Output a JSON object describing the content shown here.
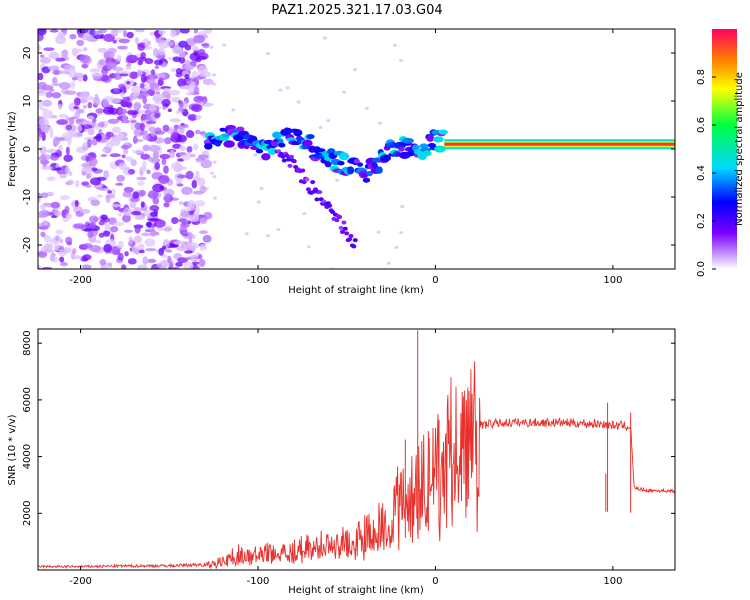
{
  "title": "PAZ1.2025.321.17.03.G04",
  "chart_data": [
    {
      "type": "heatmap",
      "name": "spectrogram",
      "xlabel": "Height of straight line (km)",
      "ylabel": "Frequency (Hz)",
      "xlim": [
        -224,
        135
      ],
      "ylim": [
        -25,
        25
      ],
      "xticks": [
        -200,
        -100,
        0,
        100
      ],
      "yticks": [
        -20,
        -10,
        0,
        10,
        20
      ],
      "colorbar": {
        "label": "Normalized spectral amplitude",
        "range": [
          0.0,
          1.0
        ],
        "ticks": [
          0.0,
          0.2,
          0.4,
          0.6,
          0.8
        ],
        "tick_labels": [
          "0.0",
          "0.2",
          "0.4",
          "0.6",
          "0.8"
        ]
      },
      "features": [
        {
          "desc": "scattered noise",
          "x_range": [
            -224,
            -128
          ],
          "y_range": [
            -25,
            25
          ],
          "amplitude": 0.1
        },
        {
          "desc": "signal band",
          "x": [
            -128,
            -110,
            -95,
            -80,
            -60,
            -40,
            -20,
            -10,
            0,
            20,
            50,
            90,
            100,
            135
          ],
          "y": [
            2,
            3,
            0,
            3,
            -2,
            -5,
            1,
            -1,
            2,
            1,
            1,
            1,
            1,
            1
          ]
        },
        {
          "desc": "diagonal branch",
          "x": [
            -90,
            -70,
            -55,
            -45
          ],
          "y": [
            1,
            -8,
            -15,
            -20
          ]
        },
        {
          "desc": "strong carrier",
          "x_range": [
            5,
            135
          ],
          "frequency": 1,
          "amplitude": 0.95
        }
      ]
    },
    {
      "type": "line",
      "name": "snr",
      "xlabel": "Height of straight line (km)",
      "ylabel": "SNR (10 * v/v)",
      "xlim": [
        -224,
        135
      ],
      "ylim": [
        0,
        8500
      ],
      "xticks": [
        -200,
        -100,
        0,
        100
      ],
      "yticks": [
        2000,
        4000,
        6000,
        8000
      ],
      "series": [
        {
          "name": "SNR",
          "color": "#e8312d",
          "x": [
            -224,
            -200,
            -175,
            -150,
            -128,
            -120,
            -112,
            -105,
            -95,
            -85,
            -75,
            -65,
            -55,
            -45,
            -35,
            -25,
            -20,
            -15,
            -12,
            -10,
            -8,
            -5,
            0,
            5,
            10,
            15,
            20,
            25,
            30,
            40,
            50,
            60,
            70,
            80,
            90,
            95,
            100,
            105,
            110,
            112,
            115,
            120,
            125,
            135
          ],
          "y": [
            120,
            120,
            140,
            150,
            200,
            350,
            600,
            500,
            650,
            700,
            800,
            900,
            1000,
            1100,
            1400,
            2000,
            2600,
            3000,
            3500,
            3200,
            3600,
            3400,
            3700,
            4300,
            4700,
            4900,
            5000,
            5100,
            5150,
            5200,
            5200,
            5200,
            5200,
            5180,
            5150,
            5150,
            5100,
            5100,
            5050,
            2900,
            2850,
            2800,
            2800,
            2780
          ]
        }
      ],
      "spikes": [
        {
          "x": -10,
          "y": 8450
        },
        {
          "x": -17,
          "y": 4600
        },
        {
          "x": -4,
          "y": 4900
        },
        {
          "x": 2,
          "y": 5300
        },
        {
          "x": 96,
          "y": 3400
        },
        {
          "x": 97,
          "y": 5900
        },
        {
          "x": 110,
          "y": 5550
        }
      ]
    }
  ]
}
